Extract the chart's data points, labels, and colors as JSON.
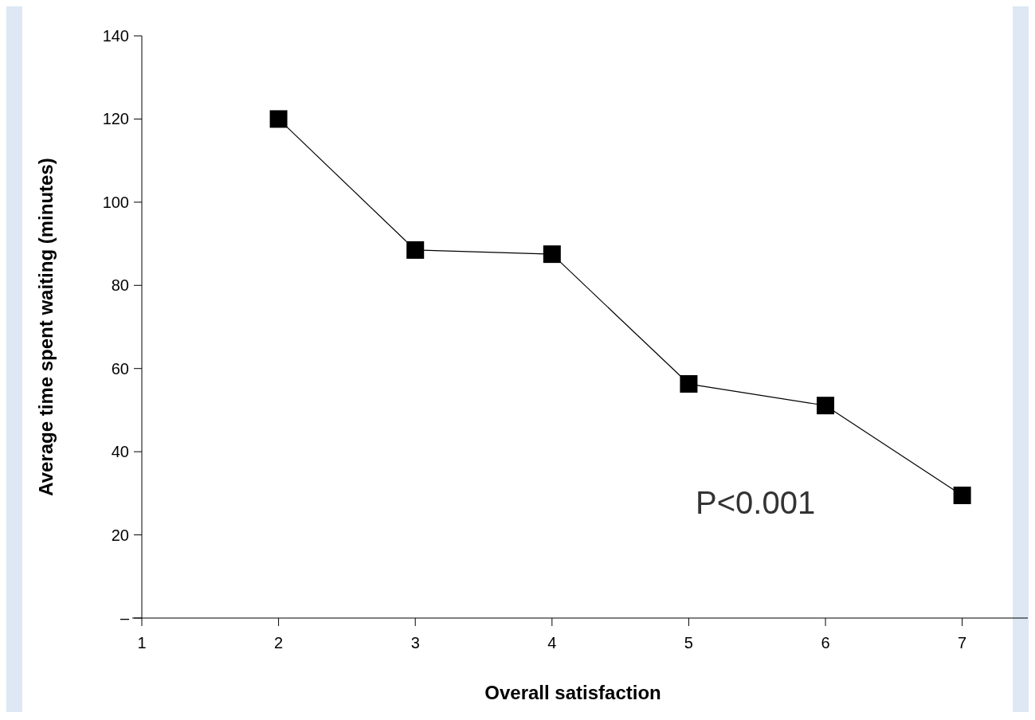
{
  "chart_data": {
    "type": "line",
    "xlabel": "Overall satisfaction",
    "ylabel": "Average time spent waiting (minutes)",
    "x": [
      2,
      3,
      4,
      5,
      6,
      7
    ],
    "series": [
      {
        "color": "#000000",
        "values": [
          120,
          88.5,
          87.5,
          56.3,
          51.1,
          29.5
        ]
      }
    ],
    "xlim": [
      1,
      7.48
    ],
    "xticks": [
      1,
      2,
      3,
      4,
      5,
      6,
      7
    ],
    "ylim": [
      0,
      140
    ],
    "yticks": [
      {
        "value": 0,
        "label": "–"
      },
      20,
      40,
      60,
      80,
      100,
      120,
      140
    ],
    "marker": "square",
    "line_style": "solid",
    "grid": false,
    "annotations": [
      "P<0.001"
    ]
  }
}
